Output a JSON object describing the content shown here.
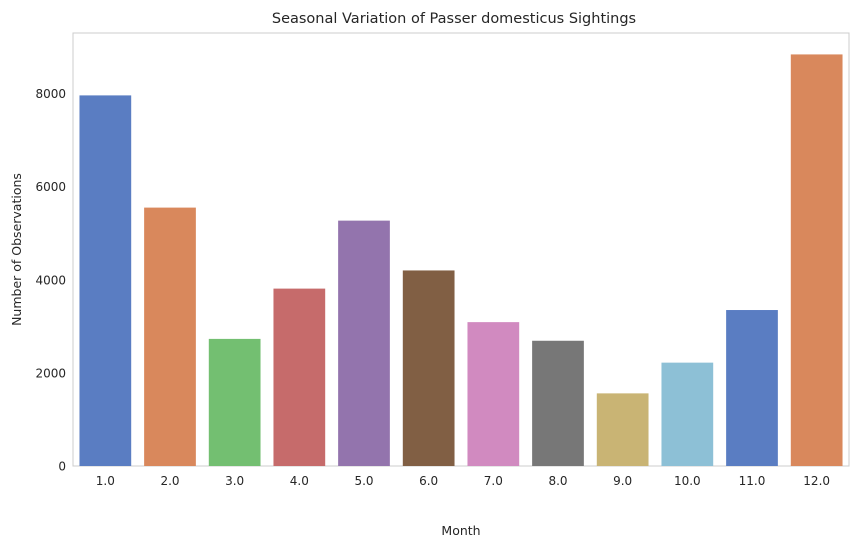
{
  "chart_data": {
    "type": "bar",
    "title": "Seasonal Variation of Passer domesticus Sightings",
    "xlabel": "Month",
    "ylabel": "Number of Observations",
    "categories": [
      "1.0",
      "2.0",
      "3.0",
      "4.0",
      "5.0",
      "6.0",
      "7.0",
      "8.0",
      "9.0",
      "10.0",
      "11.0",
      "12.0"
    ],
    "values": [
      7960,
      5550,
      2730,
      3810,
      5270,
      4200,
      3090,
      2690,
      1560,
      2220,
      3350,
      8840
    ],
    "colors": [
      "#5a7dc2",
      "#d9885c",
      "#73bf71",
      "#c66b6b",
      "#9374ad",
      "#815f44",
      "#d18ac0",
      "#777777",
      "#c9b474",
      "#8dc0d6",
      "#5a7dc2",
      "#d9885c"
    ],
    "ylim": [
      0,
      9300
    ],
    "yticks": [
      0,
      2000,
      4000,
      6000,
      8000
    ],
    "grid": false,
    "legend": "none"
  }
}
